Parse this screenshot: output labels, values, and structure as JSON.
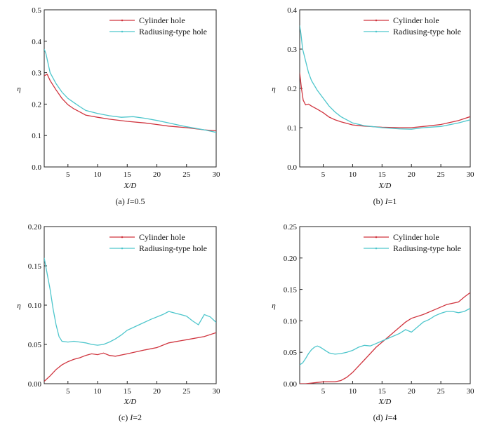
{
  "chart_data": [
    {
      "type": "line",
      "caption": {
        "prefix": "(a) ",
        "var": "I",
        "suffix": "=0.5"
      },
      "xlabel": "X/D",
      "ylabel": "η",
      "xlim": [
        1,
        30
      ],
      "ylim": [
        0,
        0.5
      ],
      "xticks": [
        5,
        10,
        15,
        20,
        25,
        30
      ],
      "yticks": [
        "0.0",
        "0.1",
        "0.2",
        "0.3",
        "0.4",
        "0.5"
      ],
      "legend_position": "top-right",
      "series": [
        {
          "name": "Cylinder hole",
          "color": "#d0353f",
          "x": [
            1,
            1.5,
            2,
            3,
            4,
            5,
            6,
            7,
            8,
            10,
            12,
            15,
            18,
            20,
            22,
            25,
            28,
            30
          ],
          "y": [
            0.29,
            0.295,
            0.275,
            0.245,
            0.218,
            0.198,
            0.185,
            0.175,
            0.165,
            0.158,
            0.152,
            0.145,
            0.14,
            0.135,
            0.13,
            0.125,
            0.118,
            0.115
          ]
        },
        {
          "name": "Radiusing-type hole",
          "color": "#4ec6cc",
          "x": [
            1,
            1.3,
            2,
            3,
            4,
            5,
            6,
            7,
            8,
            10,
            12,
            14,
            16,
            18,
            20,
            22,
            25,
            28,
            30
          ],
          "y": [
            0.375,
            0.36,
            0.3,
            0.265,
            0.238,
            0.218,
            0.205,
            0.192,
            0.18,
            0.17,
            0.163,
            0.158,
            0.16,
            0.155,
            0.148,
            0.14,
            0.128,
            0.118,
            0.11
          ]
        }
      ]
    },
    {
      "type": "line",
      "caption": {
        "prefix": "(b) ",
        "var": "I",
        "suffix": "=1"
      },
      "xlabel": "X/D",
      "ylabel": "η",
      "xlim": [
        1,
        30
      ],
      "ylim": [
        0,
        0.4
      ],
      "xticks": [
        5,
        10,
        15,
        20,
        25,
        30
      ],
      "yticks": [
        "0.0",
        "0.1",
        "0.2",
        "0.3",
        "0.4"
      ],
      "legend_position": "top-right",
      "series": [
        {
          "name": "Cylinder hole",
          "color": "#d0353f",
          "x": [
            1,
            1.3,
            1.6,
            2,
            2.5,
            3,
            4,
            5,
            6,
            7,
            8,
            10,
            12,
            15,
            18,
            20,
            22,
            25,
            28,
            30
          ],
          "y": [
            0.24,
            0.2,
            0.17,
            0.158,
            0.16,
            0.155,
            0.147,
            0.138,
            0.127,
            0.12,
            0.115,
            0.107,
            0.104,
            0.101,
            0.1,
            0.1,
            0.103,
            0.108,
            0.118,
            0.128
          ]
        },
        {
          "name": "Radiusing-type hole",
          "color": "#4ec6cc",
          "x": [
            1,
            1.2,
            1.5,
            2,
            2.5,
            3,
            4,
            5,
            6,
            7,
            8,
            10,
            12,
            15,
            18,
            20,
            22,
            25,
            28,
            30
          ],
          "y": [
            0.36,
            0.34,
            0.3,
            0.27,
            0.24,
            0.22,
            0.195,
            0.175,
            0.155,
            0.14,
            0.128,
            0.112,
            0.105,
            0.1,
            0.097,
            0.096,
            0.1,
            0.103,
            0.112,
            0.12
          ]
        }
      ]
    },
    {
      "type": "line",
      "caption": {
        "prefix": "(c) ",
        "var": "I",
        "suffix": "=2"
      },
      "xlabel": "X/D",
      "ylabel": "η",
      "xlim": [
        1,
        30
      ],
      "ylim": [
        0,
        0.2
      ],
      "xticks": [
        5,
        10,
        15,
        20,
        25,
        30
      ],
      "yticks": [
        "0.00",
        "0.05",
        "0.10",
        "0.15",
        "0.20"
      ],
      "legend_position": "top-right",
      "series": [
        {
          "name": "Cylinder hole",
          "color": "#d0353f",
          "x": [
            1,
            2,
            3,
            4,
            5,
            6,
            7,
            8,
            9,
            10,
            11,
            12,
            13,
            15,
            18,
            20,
            22,
            25,
            28,
            30
          ],
          "y": [
            0.003,
            0.01,
            0.018,
            0.024,
            0.028,
            0.031,
            0.033,
            0.036,
            0.038,
            0.037,
            0.039,
            0.036,
            0.035,
            0.038,
            0.043,
            0.046,
            0.052,
            0.056,
            0.06,
            0.065
          ]
        },
        {
          "name": "Radiusing-type hole",
          "color": "#4ec6cc",
          "x": [
            1,
            1.5,
            2,
            2.5,
            3,
            3.5,
            4,
            5,
            6,
            7,
            8,
            9,
            10,
            11,
            12,
            13,
            14,
            15,
            17,
            19,
            21,
            22,
            23,
            24,
            25,
            26,
            27,
            28,
            29,
            30
          ],
          "y": [
            0.16,
            0.14,
            0.12,
            0.095,
            0.075,
            0.06,
            0.054,
            0.053,
            0.054,
            0.053,
            0.052,
            0.05,
            0.049,
            0.05,
            0.053,
            0.057,
            0.062,
            0.068,
            0.075,
            0.082,
            0.088,
            0.092,
            0.09,
            0.088,
            0.086,
            0.08,
            0.075,
            0.088,
            0.085,
            0.078
          ]
        }
      ]
    },
    {
      "type": "line",
      "caption": {
        "prefix": "(d) ",
        "var": "I",
        "suffix": "=4"
      },
      "xlabel": "X/D",
      "ylabel": "η",
      "xlim": [
        1,
        30
      ],
      "ylim": [
        0,
        0.25
      ],
      "xticks": [
        5,
        10,
        15,
        20,
        25,
        30
      ],
      "yticks": [
        "0.00",
        "0.05",
        "0.10",
        "0.15",
        "0.20",
        "0.25"
      ],
      "legend_position": "top-right",
      "series": [
        {
          "name": "Cylinder hole",
          "color": "#d0353f",
          "x": [
            1,
            2,
            3,
            4,
            5,
            6,
            7,
            8,
            9,
            10,
            11,
            12,
            13,
            14,
            15,
            16,
            17,
            18,
            19,
            20,
            22,
            24,
            26,
            28,
            29,
            30
          ],
          "y": [
            0.0,
            0.0,
            0.001,
            0.002,
            0.003,
            0.003,
            0.003,
            0.005,
            0.01,
            0.018,
            0.028,
            0.038,
            0.048,
            0.058,
            0.066,
            0.074,
            0.082,
            0.09,
            0.098,
            0.104,
            0.11,
            0.118,
            0.126,
            0.13,
            0.138,
            0.145
          ]
        },
        {
          "name": "Radiusing-type hole",
          "color": "#4ec6cc",
          "x": [
            1,
            1.5,
            2,
            2.5,
            3,
            3.5,
            4,
            4.5,
            5,
            5.5,
            6,
            7,
            8,
            9,
            10,
            11,
            12,
            13,
            14,
            15,
            16,
            17,
            18,
            19,
            20,
            21,
            22,
            23,
            24,
            25,
            26,
            27,
            28,
            29,
            30
          ],
          "y": [
            0.03,
            0.033,
            0.04,
            0.048,
            0.054,
            0.058,
            0.06,
            0.058,
            0.055,
            0.052,
            0.049,
            0.047,
            0.048,
            0.05,
            0.053,
            0.058,
            0.061,
            0.06,
            0.064,
            0.068,
            0.072,
            0.076,
            0.08,
            0.086,
            0.082,
            0.09,
            0.098,
            0.102,
            0.108,
            0.112,
            0.115,
            0.115,
            0.113,
            0.115,
            0.12
          ]
        }
      ]
    }
  ]
}
